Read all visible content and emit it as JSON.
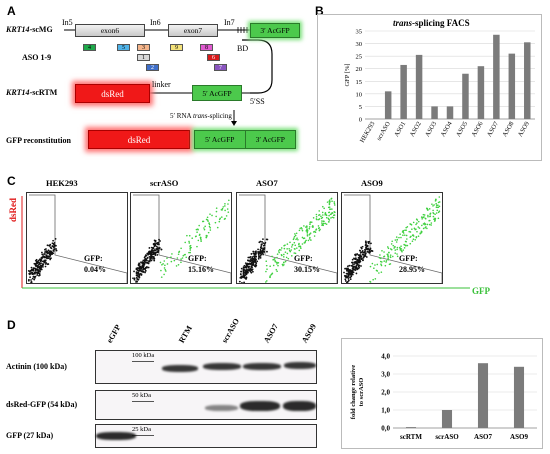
{
  "panels": {
    "a": "A",
    "b": "B",
    "c": "C",
    "d": "D"
  },
  "panel_a": {
    "row1_label_gene": "KRT14",
    "row1_label_suffix": "-scMG",
    "in5": "In5",
    "in6": "In6",
    "in7": "In7",
    "exon6": "exon6",
    "exon7": "exon7",
    "acgfp3": "3′ AcGFP",
    "bd": "BD",
    "aso_label": "ASO 1-9",
    "aso_numbers": [
      "4",
      "5",
      "3",
      "9",
      "8",
      "1",
      "2",
      "6",
      "7"
    ],
    "aso_colors": [
      "#1fa84a",
      "#4fb3e8",
      "#f4b48a",
      "#f4e27a",
      "#e05ad0",
      "#d8d8d8",
      "#3f6fc9",
      "#d81b1b",
      "#8a55c0"
    ],
    "row2_label_gene": "KRT14",
    "row2_label_suffix": "-scRTM",
    "dsred": "dsRed",
    "linker": "linker",
    "acgfp5": "5′ AcGFP",
    "ss5": "5′SS",
    "splice_label_pre": "5′ RNA ",
    "splice_label_it": "trans",
    "splice_label_post": "-splicing",
    "gfp_recon": "GFP reconstitution"
  },
  "chart_data": {
    "type": "bar",
    "title_it": "trans",
    "title_rest": "-splicing FACS",
    "ylabel": "GFP [%]",
    "categories": [
      "HEK293",
      "scrASO",
      "ASO1",
      "ASO2",
      "ASO3",
      "ASO4",
      "ASO5",
      "ASO6",
      "ASO7",
      "ASO8",
      "ASO9"
    ],
    "values": [
      0,
      11,
      21.5,
      25.5,
      5,
      5,
      18,
      21,
      33.5,
      26,
      30.5
    ],
    "ylim": [
      0,
      35
    ],
    "yticks": [
      0,
      5,
      10,
      15,
      20,
      25,
      30,
      35
    ],
    "grid": true,
    "bar_color": "#7b7b7b"
  },
  "panel_c": {
    "plots": [
      {
        "title": "HEK293",
        "gfp_label": "GFP:",
        "gfp_value": "0.04%",
        "green_fraction": 0.0004
      },
      {
        "title": "scrASO",
        "gfp_label": "GFP:",
        "gfp_value": "15.16%",
        "green_fraction": 0.1516
      },
      {
        "title": "ASO7",
        "gfp_label": "GFP:",
        "gfp_value": "30.15%",
        "green_fraction": 0.3015
      },
      {
        "title": "ASO9",
        "gfp_label": "GFP:",
        "gfp_value": "28.95%",
        "green_fraction": 0.2895
      }
    ],
    "yaxis": "dsRed",
    "xaxis": "GFP",
    "yaxis_color": "#e01818",
    "xaxis_color": "#38c038"
  },
  "panel_d": {
    "lanes": [
      "eGFP",
      "RTM",
      "scrASO",
      "ASO7",
      "ASO9"
    ],
    "rows": [
      {
        "label": "Actinin (100 kDa)",
        "marker": "100 kDa"
      },
      {
        "label": "dsRed-GFP (54 kDa)",
        "marker": "50 kDa"
      },
      {
        "label": "GFP (27 kDa)",
        "marker": "25 kDa"
      }
    ]
  },
  "chart_data_d": {
    "type": "bar",
    "ylabel_line1": "fold change relative",
    "ylabel_line2": "to scrASO",
    "categories": [
      "scRTM",
      "scrASO",
      "ASO7",
      "ASO9"
    ],
    "values": [
      0.05,
      1.0,
      3.6,
      3.4
    ],
    "ylim": [
      0,
      4
    ],
    "yticks": [
      "0,0",
      "1,0",
      "2,0",
      "3,0",
      "4,0"
    ],
    "grid": true,
    "bar_color": "#7b7b7b"
  }
}
